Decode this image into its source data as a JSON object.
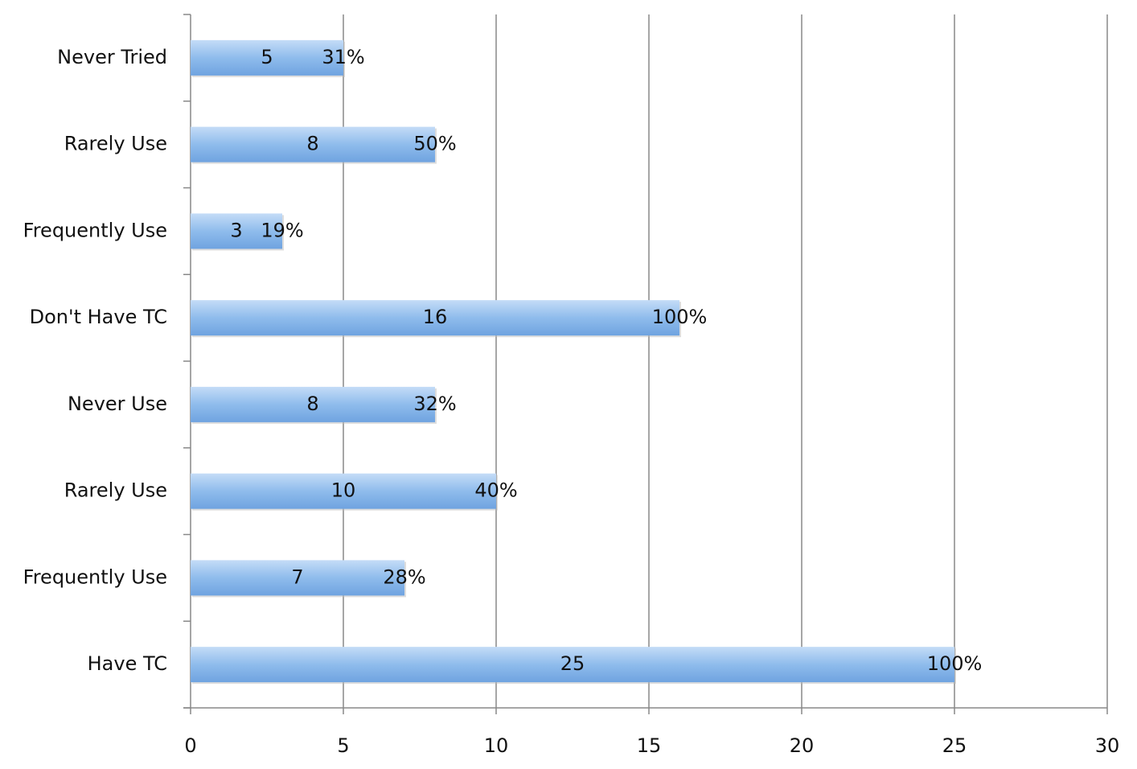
{
  "chart_data": {
    "type": "hbar",
    "categories": [
      "Never Tried",
      "Rarely Use",
      "Frequently Use",
      "Don't Have TC",
      "Never Use",
      "Rarely Use",
      "Frequently Use",
      "Have TC"
    ],
    "values": [
      5,
      8,
      3,
      16,
      8,
      10,
      7,
      25
    ],
    "end_labels": [
      "31%",
      "50%",
      "19%",
      "100%",
      "32%",
      "40%",
      "28%",
      "100%"
    ],
    "color": "#8fbcec",
    "xlim": [
      0,
      30
    ],
    "xticks": [
      0,
      5,
      10,
      15,
      20,
      25,
      30
    ],
    "grid": true
  }
}
